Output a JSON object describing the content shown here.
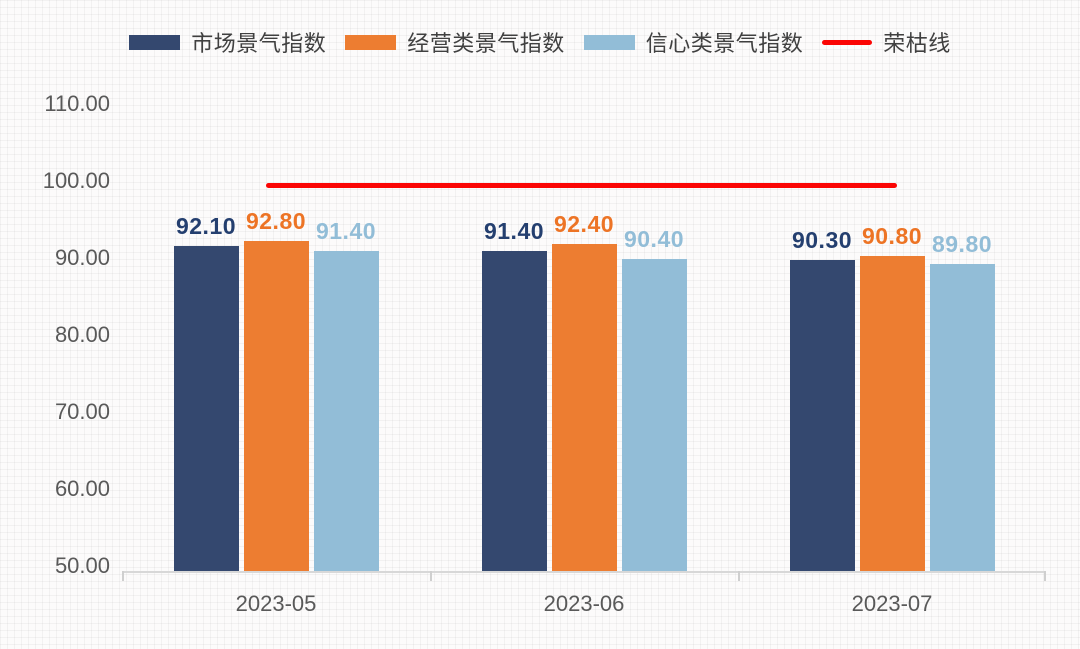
{
  "colors": {
    "series1": "#34486F",
    "series1_label": "#243F6F",
    "series2": "#ED7D31",
    "series2_label": "#ED7425",
    "series3": "#92BDD7",
    "series3_label": "#92BDD7",
    "reference_line": "#FB0504",
    "axis_text": "#595959",
    "legend_text": "#404040",
    "axis_line": "#D8D8D8"
  },
  "chart_data": {
    "type": "bar",
    "categories": [
      "2023-05",
      "2023-06",
      "2023-07"
    ],
    "series": [
      {
        "name": "市场景气指数",
        "values": [
          92.1,
          91.4,
          90.3
        ],
        "color": "#34486F",
        "label_color": "#243F6F"
      },
      {
        "name": "经营类景气指数",
        "values": [
          92.8,
          92.4,
          90.8
        ],
        "color": "#ED7D31",
        "label_color": "#ED7425"
      },
      {
        "name": "信心类景气指数",
        "values": [
          91.4,
          90.4,
          89.8
        ],
        "color": "#92BDD7",
        "label_color": "#92BDD7"
      }
    ],
    "reference_line": {
      "name": "荣枯线",
      "value": 100,
      "color": "#FB0504"
    },
    "y_ticks": [
      "110.00",
      "100.00",
      "90.00",
      "80.00",
      "70.00",
      "60.00",
      "50.00"
    ],
    "ylim": [
      50,
      110
    ],
    "grid": false,
    "legend_position": "top",
    "data_labels": true,
    "value_format": "0.00"
  }
}
